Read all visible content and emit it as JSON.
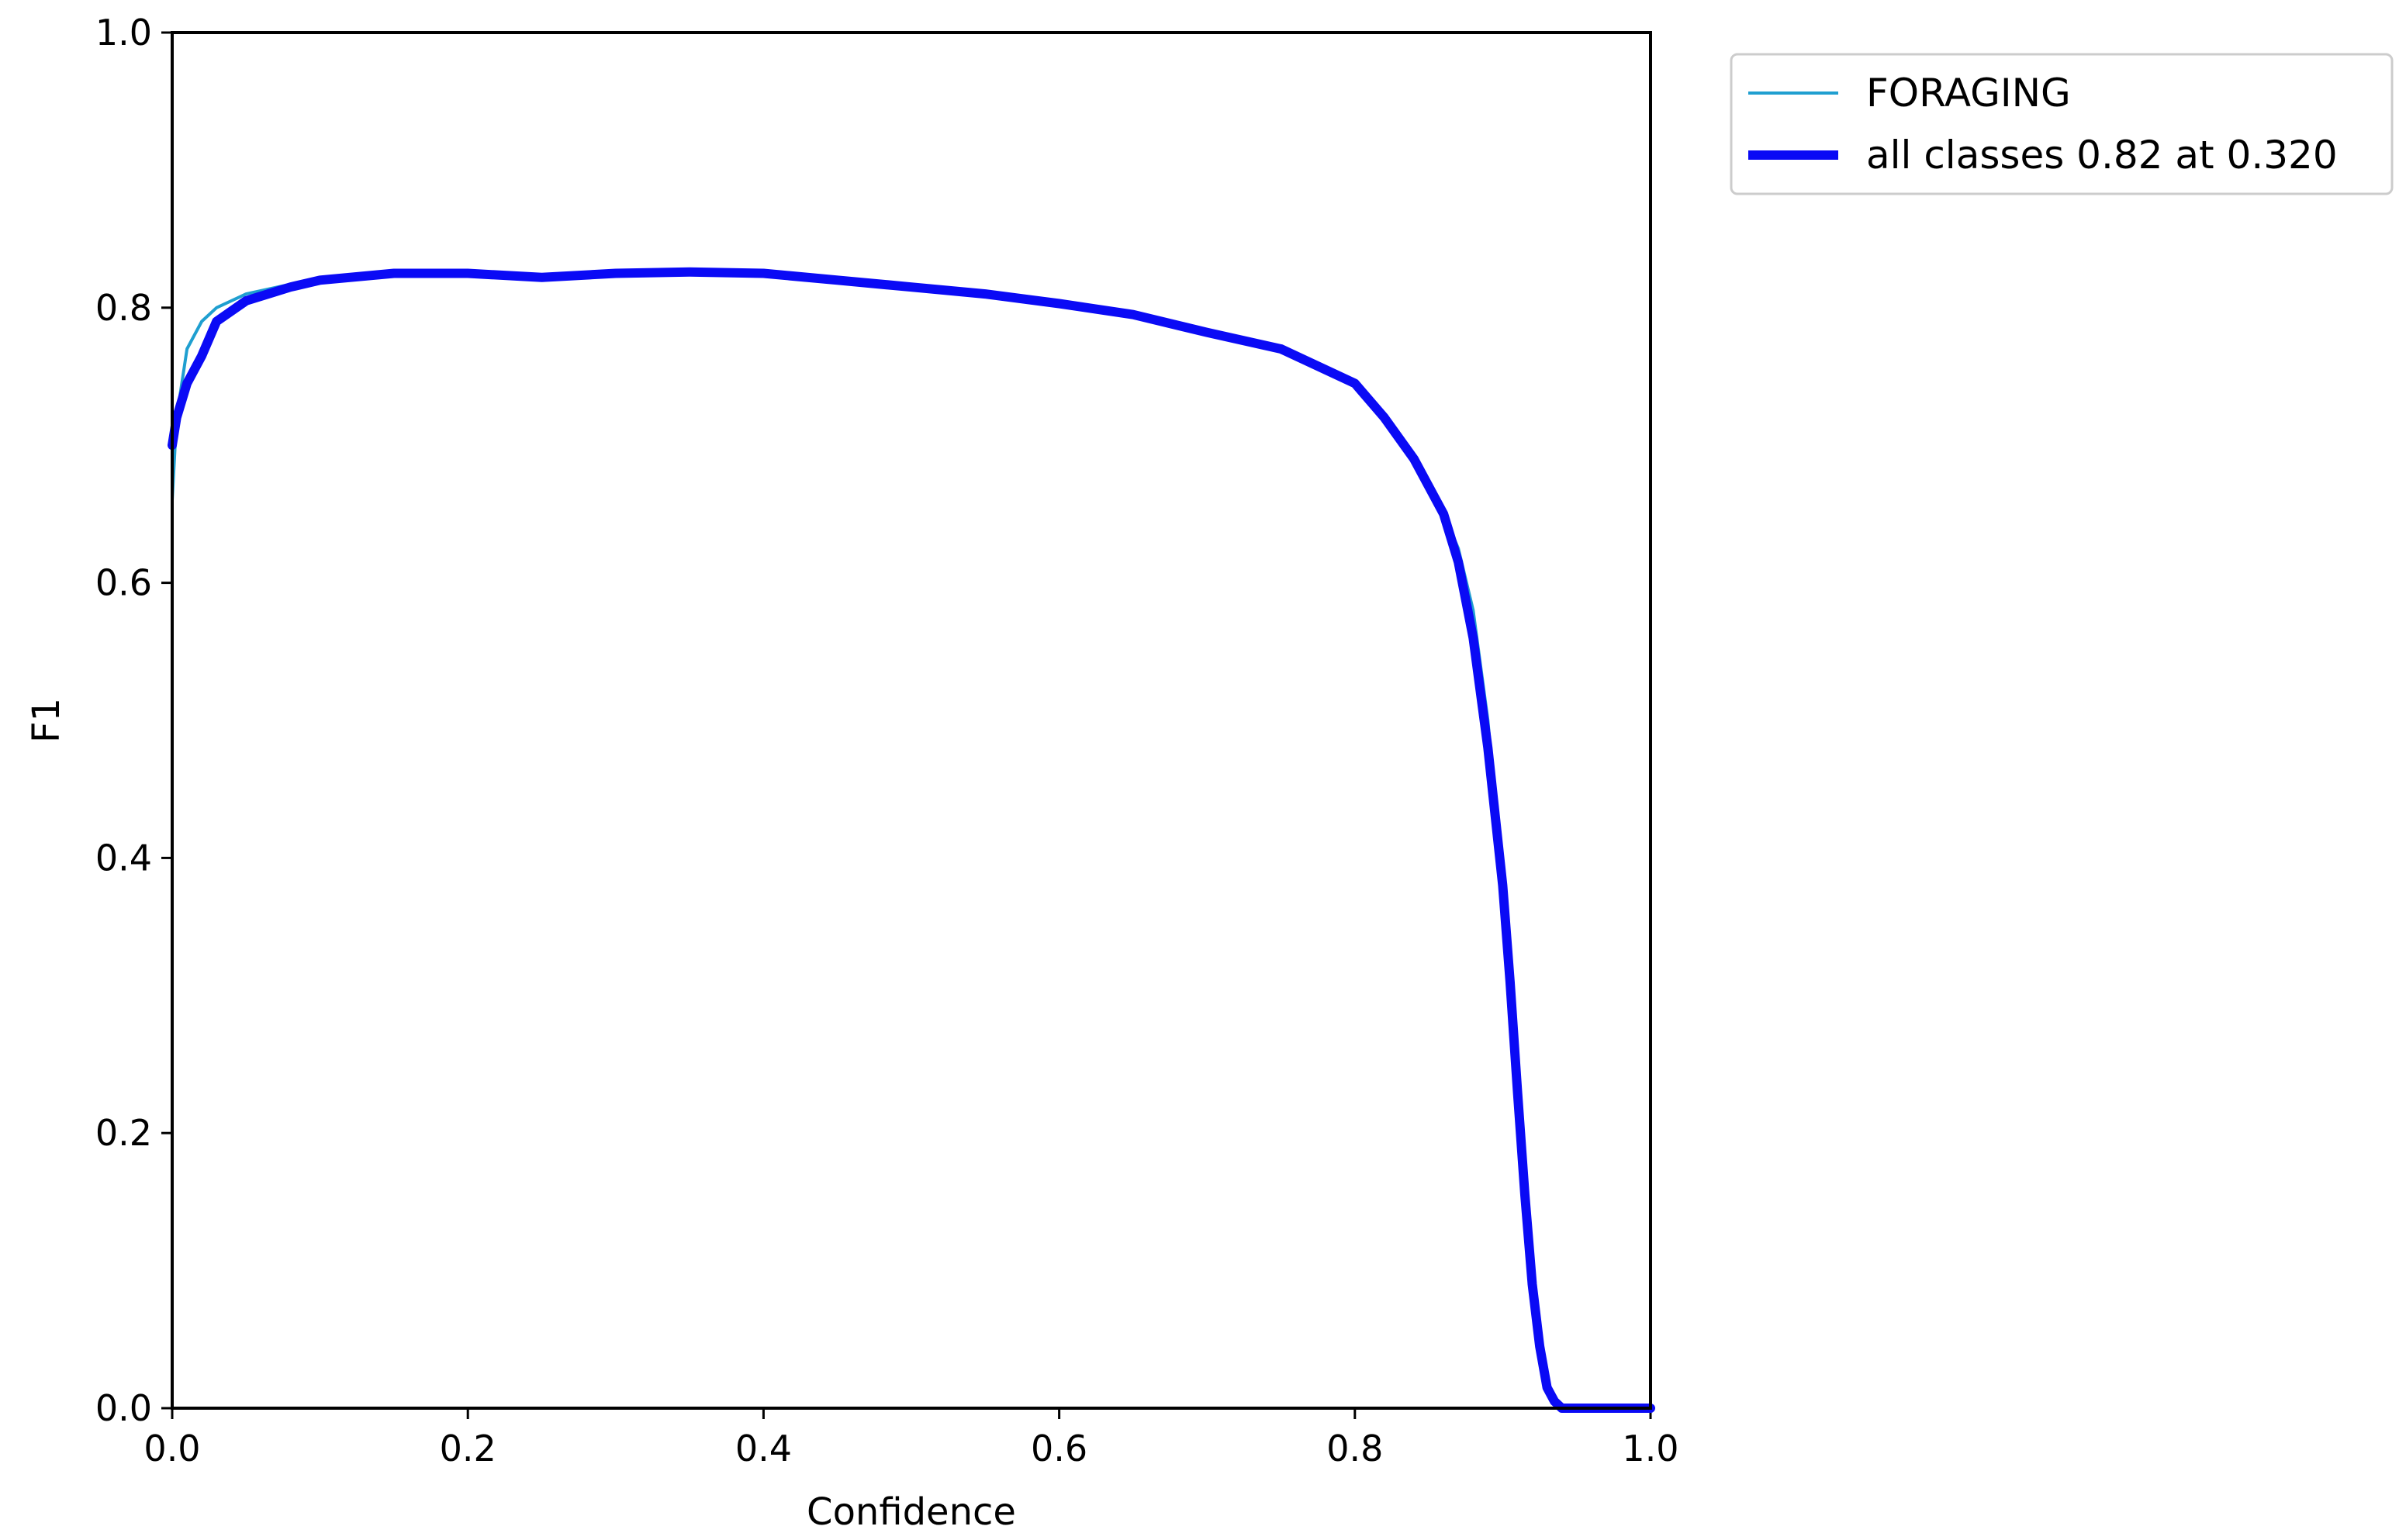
{
  "chart_data": {
    "type": "line",
    "title": "",
    "xlabel": "Confidence",
    "ylabel": "F1",
    "xlim": [
      0,
      1
    ],
    "ylim": [
      0,
      1
    ],
    "x_ticks": [
      "0.0",
      "0.2",
      "0.4",
      "0.6",
      "0.8",
      "1.0"
    ],
    "y_ticks": [
      "0.0",
      "0.2",
      "0.4",
      "0.6",
      "0.8",
      "1.0"
    ],
    "grid": false,
    "legend_position": "outside-top-right",
    "series": [
      {
        "name": "FORAGING",
        "color": "#1f9fd0",
        "line_weight": "thin",
        "x": [
          0.0,
          0.003,
          0.01,
          0.02,
          0.03,
          0.05,
          0.08,
          0.1,
          0.15,
          0.2,
          0.25,
          0.3,
          0.35,
          0.4,
          0.45,
          0.5,
          0.55,
          0.6,
          0.65,
          0.7,
          0.75,
          0.8,
          0.82,
          0.84,
          0.86,
          0.87,
          0.88,
          0.89,
          0.9,
          0.905,
          0.91,
          0.915,
          0.92,
          0.925,
          0.93,
          0.935,
          0.94,
          0.95,
          0.97,
          1.0
        ],
        "y": [
          0.66,
          0.72,
          0.77,
          0.79,
          0.8,
          0.81,
          0.817,
          0.82,
          0.825,
          0.825,
          0.822,
          0.825,
          0.826,
          0.825,
          0.82,
          0.815,
          0.81,
          0.803,
          0.795,
          0.782,
          0.77,
          0.745,
          0.72,
          0.69,
          0.65,
          0.625,
          0.58,
          0.5,
          0.38,
          0.3,
          0.22,
          0.14,
          0.08,
          0.035,
          0.012,
          0.004,
          0.0,
          0.0,
          0.0,
          0.0
        ]
      },
      {
        "name": "all classes 0.82 at 0.320",
        "color": "#0a0af5",
        "line_weight": "thick",
        "x": [
          0.0,
          0.003,
          0.01,
          0.02,
          0.03,
          0.05,
          0.08,
          0.1,
          0.15,
          0.2,
          0.25,
          0.3,
          0.35,
          0.4,
          0.45,
          0.5,
          0.55,
          0.6,
          0.65,
          0.7,
          0.75,
          0.8,
          0.82,
          0.84,
          0.86,
          0.87,
          0.88,
          0.89,
          0.9,
          0.905,
          0.91,
          0.915,
          0.92,
          0.925,
          0.93,
          0.935,
          0.94,
          0.95,
          0.97,
          1.0
        ],
        "y": [
          0.7,
          0.72,
          0.745,
          0.765,
          0.79,
          0.805,
          0.815,
          0.82,
          0.825,
          0.825,
          0.822,
          0.825,
          0.826,
          0.825,
          0.82,
          0.815,
          0.81,
          0.803,
          0.795,
          0.782,
          0.77,
          0.745,
          0.72,
          0.69,
          0.65,
          0.615,
          0.56,
          0.48,
          0.38,
          0.31,
          0.23,
          0.155,
          0.09,
          0.045,
          0.015,
          0.005,
          0.0,
          0.0,
          0.0,
          0.0
        ]
      }
    ]
  }
}
